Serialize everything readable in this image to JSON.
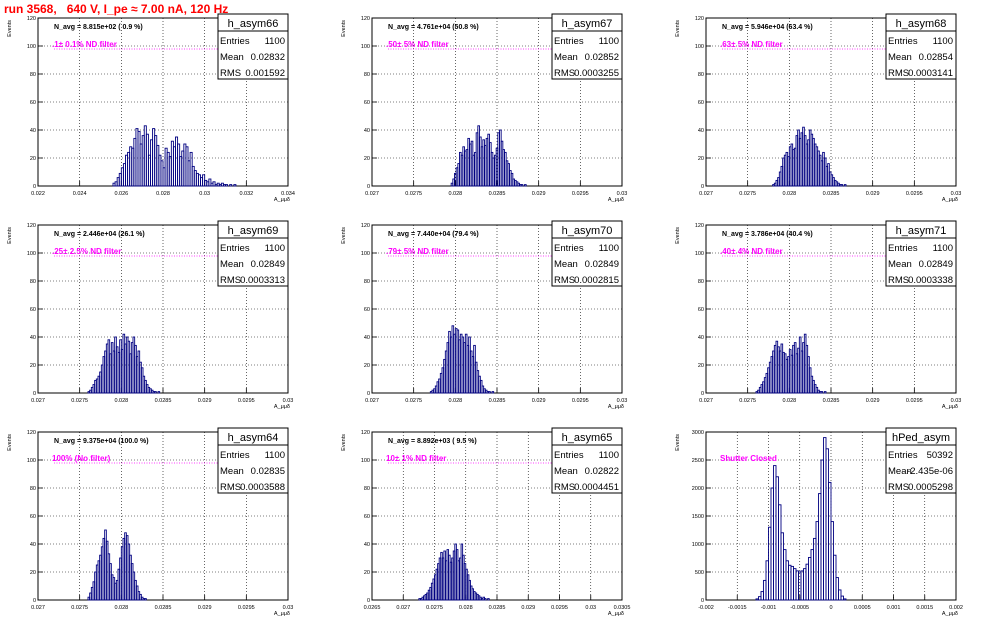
{
  "run_title": "run 3568,   640 V, I_pe ≈ 7.00 nA, 120 Hz",
  "colors": {
    "hist": "#000080",
    "annot": "#ff00ff",
    "title": "#ff0000",
    "grid": "#000000"
  },
  "stat_labels": {
    "entries": "Entries",
    "mean": "Mean",
    "rms": "RMS"
  },
  "chart_data": [
    {
      "type": "histogram",
      "name": "h_asym66",
      "entries": "1100",
      "mean": "0.02832",
      "rms": "0.001592",
      "navg": "N_avg = 8.815e+02 ( 0.9 %)",
      "filter": ".1± 0.1% ND filter",
      "ylabel": "Events",
      "xlabel": "A_μμδ",
      "xlim": [
        0.022,
        0.034
      ],
      "ylim": [
        0,
        120
      ],
      "xticks": [
        0.022,
        0.024,
        0.026,
        0.028,
        0.03,
        0.032,
        0.034
      ],
      "xticklabels": [
        "0.022",
        "0.024",
        "0.026",
        "0.028",
        "0.03",
        "0.032",
        "0.034"
      ],
      "yticks": [
        0,
        20,
        40,
        60,
        80,
        100,
        120
      ],
      "x_start": 0.0256,
      "bin_width": 0.0001,
      "values": [
        2,
        3,
        6,
        9,
        13,
        16,
        22,
        24,
        28,
        27,
        34,
        41,
        39,
        30,
        36,
        43,
        37,
        22,
        33,
        41,
        36,
        29,
        22,
        18,
        13,
        27,
        24,
        21,
        32,
        28,
        35,
        30,
        21,
        25,
        30,
        28,
        18,
        24,
        14,
        11,
        9,
        8,
        6,
        8,
        4,
        3,
        5,
        2,
        3,
        1,
        2,
        1,
        2,
        1,
        1,
        0,
        1,
        0,
        1
      ]
    },
    {
      "type": "histogram",
      "name": "h_asym67",
      "entries": "1100",
      "mean": "0.02852",
      "rms": "0.0003255",
      "navg": "N_avg = 4.761e+04 (50.8 %)",
      "filter": ".50± 5% ND filter",
      "ylabel": "Events",
      "xlabel": "A_μμδ",
      "xlim": [
        0.027,
        0.03
      ],
      "ylim": [
        0,
        120
      ],
      "xticks": [
        0.027,
        0.0275,
        0.028,
        0.0285,
        0.029,
        0.0295,
        0.03
      ],
      "xticklabels": [
        "0.027",
        "0.0275",
        "0.028",
        "0.0285",
        "0.029",
        "0.0295",
        "0.03"
      ],
      "yticks": [
        0,
        20,
        40,
        60,
        80,
        100,
        120
      ],
      "x_start": 0.02795,
      "bin_width": 2e-05,
      "values": [
        2,
        5,
        9,
        13,
        16,
        24,
        22,
        28,
        25,
        26,
        34,
        30,
        32,
        22,
        24,
        38,
        43,
        35,
        28,
        33,
        29,
        34,
        37,
        31,
        24,
        20,
        22,
        27,
        38,
        40,
        32,
        26,
        24,
        18,
        16,
        11,
        9,
        5,
        4,
        3,
        2,
        1,
        1,
        0,
        1
      ]
    },
    {
      "type": "histogram",
      "name": "h_asym68",
      "entries": "1100",
      "mean": "0.02854",
      "rms": "0.0003141",
      "navg": "N_avg = 5.946e+04 (63.4 %)",
      "filter": ".63± 5% ND filter",
      "ylabel": "Events",
      "xlabel": "A_μμδ",
      "xlim": [
        0.027,
        0.03
      ],
      "ylim": [
        0,
        120
      ],
      "xticks": [
        0.027,
        0.0275,
        0.028,
        0.0285,
        0.029,
        0.0295,
        0.03
      ],
      "xticklabels": [
        "0.027",
        "0.0275",
        "0.028",
        "0.0285",
        "0.029",
        "0.0295",
        "0.03"
      ],
      "yticks": [
        0,
        20,
        40,
        60,
        80,
        100,
        120
      ],
      "x_start": 0.0278,
      "bin_width": 2e-05,
      "values": [
        1,
        2,
        4,
        6,
        10,
        14,
        20,
        22,
        24,
        21,
        28,
        30,
        26,
        27,
        36,
        40,
        34,
        38,
        42,
        36,
        30,
        33,
        40,
        37,
        34,
        30,
        28,
        25,
        22,
        18,
        24,
        20,
        14,
        16,
        10,
        8,
        6,
        4,
        3,
        2,
        1,
        1,
        0,
        1
      ]
    },
    {
      "type": "histogram",
      "name": "h_asym69",
      "entries": "1100",
      "mean": "0.02849",
      "rms": "0.0003313",
      "navg": "N_avg = 2.446e+04 (26.1 %)",
      "filter": ".25± 2.5% ND filter",
      "ylabel": "Events",
      "xlabel": "A_μμδ",
      "xlim": [
        0.027,
        0.03
      ],
      "ylim": [
        0,
        120
      ],
      "xticks": [
        0.027,
        0.0275,
        0.028,
        0.0285,
        0.029,
        0.0295,
        0.03
      ],
      "xticklabels": [
        "0.027",
        "0.0275",
        "0.028",
        "0.0285",
        "0.029",
        "0.0295",
        "0.03"
      ],
      "yticks": [
        0,
        20,
        40,
        60,
        80,
        100,
        120
      ],
      "x_start": 0.0276,
      "bin_width": 2e-05,
      "values": [
        1,
        2,
        4,
        6,
        9,
        10,
        12,
        15,
        20,
        26,
        30,
        35,
        38,
        28,
        36,
        30,
        40,
        33,
        29,
        38,
        31,
        42,
        35,
        40,
        37,
        28,
        36,
        40,
        34,
        26,
        30,
        22,
        18,
        12,
        9,
        6,
        4,
        3,
        2,
        1,
        1,
        0,
        1
      ]
    },
    {
      "type": "histogram",
      "name": "h_asym70",
      "entries": "1100",
      "mean": "0.02849",
      "rms": "0.0002815",
      "navg": "N_avg = 7.440e+04 (79.4 %)",
      "filter": ".79± 5% ND filter",
      "ylabel": "Events",
      "xlabel": "A_μμδ",
      "xlim": [
        0.027,
        0.03
      ],
      "ylim": [
        0,
        120
      ],
      "xticks": [
        0.027,
        0.0275,
        0.028,
        0.0285,
        0.029,
        0.0295,
        0.03
      ],
      "xticklabels": [
        "0.027",
        "0.0275",
        "0.028",
        "0.0285",
        "0.029",
        "0.0295",
        "0.03"
      ],
      "yticks": [
        0,
        20,
        40,
        60,
        80,
        100,
        120
      ],
      "x_start": 0.0277,
      "bin_width": 2e-05,
      "values": [
        1,
        2,
        3,
        5,
        8,
        10,
        14,
        18,
        24,
        30,
        36,
        44,
        40,
        48,
        42,
        46,
        45,
        38,
        42,
        40,
        36,
        42,
        34,
        40,
        30,
        26,
        34,
        22,
        16,
        12,
        9,
        5,
        3,
        2,
        1,
        1,
        0,
        1
      ]
    },
    {
      "type": "histogram",
      "name": "h_asym71",
      "entries": "1100",
      "mean": "0.02849",
      "rms": "0.0003338",
      "navg": "N_avg = 3.786e+04 (40.4 %)",
      "filter": ".40± 4% ND filter",
      "ylabel": "Events",
      "xlabel": "A_μμδ",
      "xlim": [
        0.027,
        0.03
      ],
      "ylim": [
        0,
        120
      ],
      "xticks": [
        0.027,
        0.0275,
        0.028,
        0.0285,
        0.029,
        0.0295,
        0.03
      ],
      "xticklabels": [
        "0.027",
        "0.0275",
        "0.028",
        "0.0285",
        "0.029",
        "0.0295",
        "0.03"
      ],
      "yticks": [
        0,
        20,
        40,
        60,
        80,
        100,
        120
      ],
      "x_start": 0.0276,
      "bin_width": 2e-05,
      "values": [
        1,
        2,
        4,
        6,
        8,
        11,
        14,
        18,
        22,
        26,
        30,
        34,
        37,
        33,
        30,
        35,
        29,
        28,
        24,
        26,
        31,
        27,
        34,
        36,
        28,
        32,
        40,
        30,
        36,
        42,
        34,
        26,
        18,
        12,
        9,
        6,
        4,
        2,
        1,
        1,
        0,
        1
      ]
    },
    {
      "type": "histogram",
      "name": "h_asym64",
      "entries": "1100",
      "mean": "0.02835",
      "rms": "0.0003588",
      "navg": "N_avg = 9.375e+04 (100.0 %)",
      "filter": "100% (No filter)",
      "ylabel": "Events",
      "xlabel": "A_μμδ",
      "xlim": [
        0.027,
        0.03
      ],
      "ylim": [
        0,
        120
      ],
      "xticks": [
        0.027,
        0.0275,
        0.028,
        0.0285,
        0.029,
        0.0295,
        0.03
      ],
      "xticklabels": [
        "0.027",
        "0.0275",
        "0.028",
        "0.0285",
        "0.029",
        "0.0295",
        "0.03"
      ],
      "yticks": [
        0,
        20,
        40,
        60,
        80,
        100,
        120
      ],
      "x_start": 0.0276,
      "bin_width": 2e-05,
      "values": [
        2,
        5,
        9,
        13,
        20,
        25,
        28,
        32,
        38,
        44,
        50,
        42,
        33,
        26,
        18,
        16,
        12,
        14,
        22,
        30,
        38,
        44,
        48,
        46,
        40,
        32,
        26,
        20,
        14,
        10,
        6,
        4,
        2,
        1,
        1
      ]
    },
    {
      "type": "histogram",
      "name": "h_asym65",
      "entries": "1100",
      "mean": "0.02822",
      "rms": "0.0004451",
      "navg": "N_avg = 8.892e+03 ( 9.5 %)",
      "filter": "10± 1% ND filter",
      "ylabel": "Events",
      "xlabel": "A_μμδ",
      "xlim": [
        0.0265,
        0.0305
      ],
      "ylim": [
        0,
        120
      ],
      "xticks": [
        0.0265,
        0.027,
        0.0275,
        0.028,
        0.0285,
        0.029,
        0.0295,
        0.03,
        0.0305
      ],
      "xticklabels": [
        "0.0265",
        "0.027",
        "0.0275",
        "0.028",
        "0.0285",
        "0.029",
        "0.0295",
        "0.03",
        "0.0305"
      ],
      "yticks": [
        0,
        20,
        40,
        60,
        80,
        100,
        120
      ],
      "x_start": 0.02725,
      "bin_width": 2.5e-05,
      "values": [
        1,
        1,
        2,
        3,
        4,
        5,
        7,
        9,
        12,
        15,
        18,
        22,
        26,
        30,
        34,
        30,
        35,
        28,
        36,
        32,
        27,
        30,
        35,
        40,
        36,
        28,
        30,
        40,
        32,
        26,
        22,
        18,
        14,
        10,
        8,
        6,
        5,
        4,
        3,
        2,
        1,
        2,
        1,
        0,
        1
      ]
    },
    {
      "type": "histogram",
      "name": "hPed_asym",
      "entries": "50392",
      "mean": "-2.435e-06",
      "rms": "0.0005298",
      "navg": "",
      "filter": "Shutter Closed",
      "ylabel": "Events",
      "xlabel": "A_μμδ",
      "xlim": [
        -0.002,
        0.002
      ],
      "ylim": [
        0,
        3000
      ],
      "xticks": [
        -0.002,
        -0.0015,
        -0.001,
        -0.0005,
        0,
        0.0005,
        0.001,
        0.0015,
        0.002
      ],
      "xticklabels": [
        "-0.002",
        "-0.0015",
        "-0.001",
        "-0.0005",
        "0",
        "0.0005",
        "0.001",
        "0.0015",
        "0.002"
      ],
      "yticks": [
        0,
        500,
        1000,
        1500,
        2000,
        2500,
        3000
      ],
      "x_start": -0.0012,
      "bin_width": 4e-05,
      "values": [
        20,
        60,
        150,
        350,
        700,
        1300,
        2000,
        2400,
        2200,
        1700,
        1200,
        900,
        700,
        620,
        600,
        560,
        520,
        500,
        520,
        560,
        640,
        760,
        900,
        1100,
        1400,
        1900,
        2500,
        2900,
        2700,
        2100,
        1400,
        800,
        400,
        180,
        70,
        20
      ]
    }
  ]
}
